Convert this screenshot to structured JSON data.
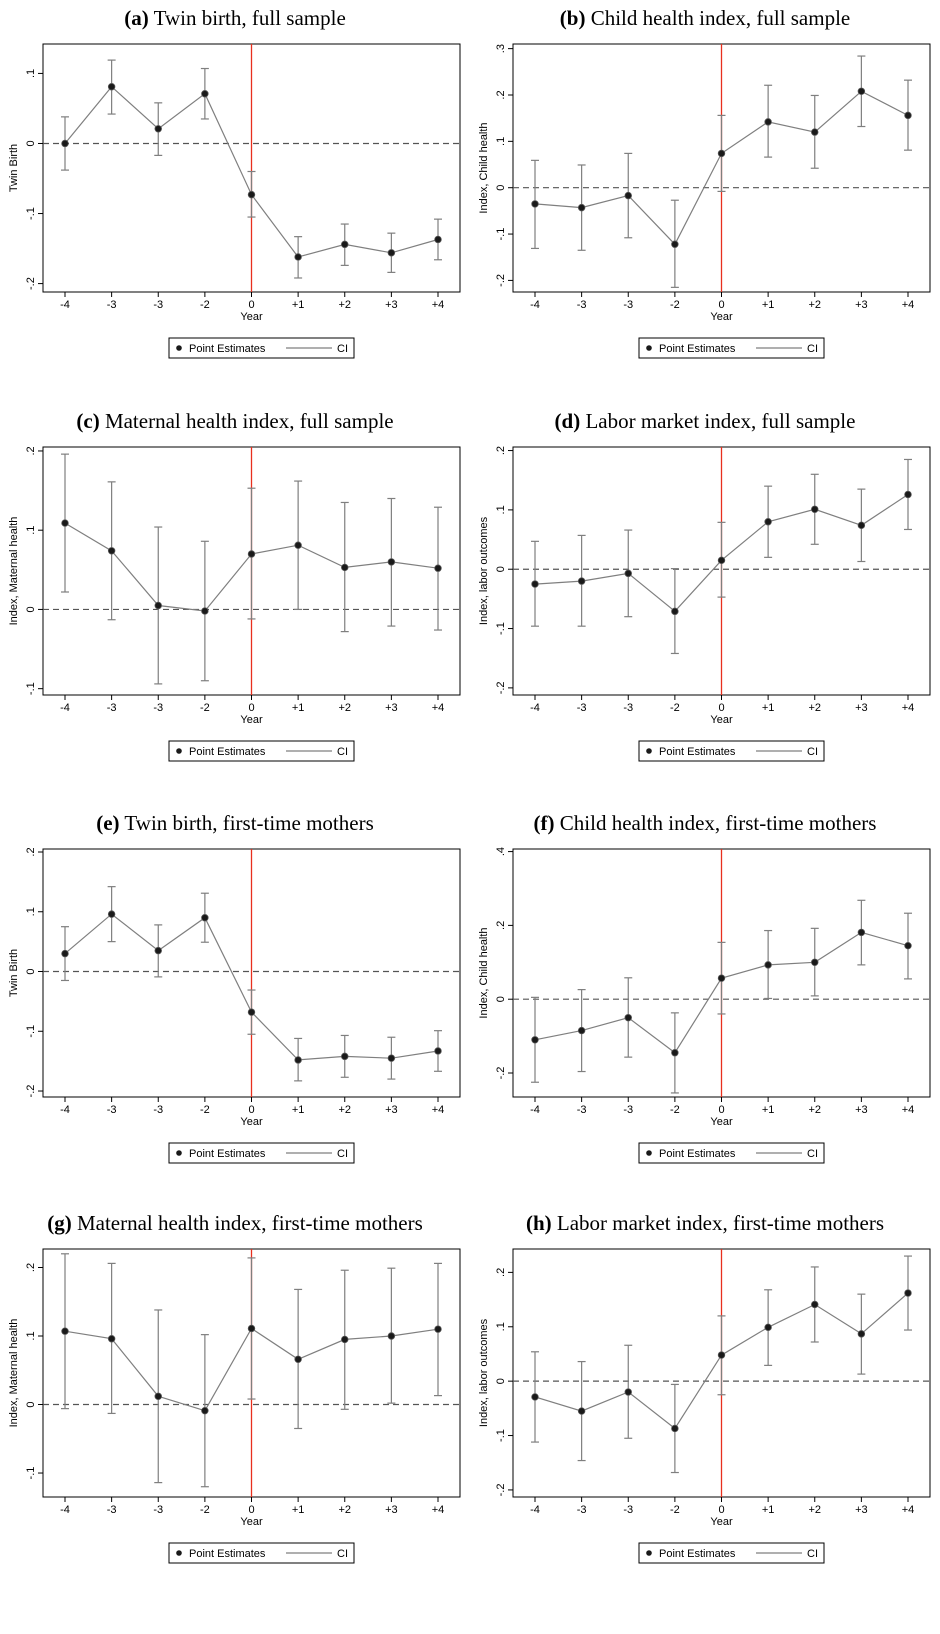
{
  "colors": {
    "series": "#7f7f7f",
    "point": "#1a1a1a",
    "event_line": "#e8301e",
    "zero_line": "#555555",
    "frame": "#000000"
  },
  "legend": {
    "point_label": "Point Estimates",
    "ci_label": "CI"
  },
  "chart_data": [
    {
      "id": "a",
      "type": "line",
      "tag": "(a)",
      "title": "Twin birth, full sample",
      "xlabel": "Year",
      "ylabel": "Twin Birth",
      "categories": [
        "-4",
        "-3",
        "-3",
        "-2",
        "0",
        "+1",
        "+2",
        "+3",
        "+4"
      ],
      "yticks": [
        {
          "value": 0.1,
          "label": ".1"
        },
        {
          "value": 0,
          "label": "0"
        },
        {
          "value": -0.1,
          "label": "-.1"
        },
        {
          "value": -0.2,
          "label": "-.2"
        }
      ],
      "ylim": [
        -0.212,
        0.142
      ],
      "event_index": 4,
      "grid": false,
      "legend_position": "bottom",
      "series": [
        {
          "estimate": [
            0.0,
            0.081,
            0.021,
            0.071,
            -0.073,
            -0.162,
            -0.144,
            -0.156,
            -0.137
          ],
          "ci_lower": [
            -0.038,
            0.042,
            -0.017,
            0.035,
            -0.105,
            -0.192,
            -0.174,
            -0.184,
            -0.166
          ],
          "ci_upper": [
            0.038,
            0.119,
            0.058,
            0.107,
            -0.04,
            -0.133,
            -0.115,
            -0.128,
            -0.108
          ]
        }
      ]
    },
    {
      "id": "b",
      "type": "line",
      "tag": "(b)",
      "title": "Child health index, full sample",
      "xlabel": "Year",
      "ylabel": "Index, Child health",
      "categories": [
        "-4",
        "-3",
        "-3",
        "-2",
        "0",
        "+1",
        "+2",
        "+3",
        "+4"
      ],
      "yticks": [
        {
          "value": 0.3,
          "label": ".3"
        },
        {
          "value": 0.2,
          "label": ".2"
        },
        {
          "value": 0.1,
          "label": ".1"
        },
        {
          "value": 0,
          "label": "0"
        },
        {
          "value": -0.1,
          "label": "-.1"
        },
        {
          "value": -0.2,
          "label": "-.2"
        }
      ],
      "ylim": [
        -0.225,
        0.31
      ],
      "event_index": 4,
      "grid": false,
      "legend_position": "bottom",
      "series": [
        {
          "estimate": [
            -0.035,
            -0.043,
            -0.017,
            -0.122,
            0.074,
            0.142,
            0.12,
            0.208,
            0.156
          ],
          "ci_lower": [
            -0.131,
            -0.135,
            -0.108,
            -0.215,
            -0.008,
            0.066,
            0.042,
            0.132,
            0.081
          ],
          "ci_upper": [
            0.059,
            0.049,
            0.074,
            -0.027,
            0.156,
            0.221,
            0.199,
            0.284,
            0.232
          ]
        }
      ]
    },
    {
      "id": "c",
      "type": "line",
      "tag": "(c)",
      "title": "Maternal health index, full sample",
      "xlabel": "Year",
      "ylabel": "Index, Maternal health",
      "categories": [
        "-4",
        "-3",
        "-3",
        "-2",
        "0",
        "+1",
        "+2",
        "+3",
        "+4"
      ],
      "yticks": [
        {
          "value": 0.2,
          "label": ".2"
        },
        {
          "value": 0.1,
          "label": ".1"
        },
        {
          "value": 0,
          "label": "0"
        },
        {
          "value": -0.1,
          "label": "-.1"
        }
      ],
      "ylim": [
        -0.108,
        0.205
      ],
      "event_index": 4,
      "grid": false,
      "legend_position": "bottom",
      "series": [
        {
          "estimate": [
            0.109,
            0.074,
            0.005,
            -0.002,
            0.07,
            0.081,
            0.053,
            0.06,
            0.052
          ],
          "ci_lower": [
            0.022,
            -0.013,
            -0.094,
            -0.09,
            -0.012,
            0.0,
            -0.028,
            -0.021,
            -0.026
          ],
          "ci_upper": [
            0.196,
            0.161,
            0.104,
            0.086,
            0.153,
            0.162,
            0.135,
            0.14,
            0.129
          ]
        }
      ]
    },
    {
      "id": "d",
      "type": "line",
      "tag": "(d)",
      "title": "Labor market index, full sample",
      "xlabel": "Year",
      "ylabel": "Index, labor outcomes",
      "categories": [
        "-4",
        "-3",
        "-3",
        "-2",
        "0",
        "+1",
        "+2",
        "+3",
        "+4"
      ],
      "yticks": [
        {
          "value": 0.2,
          "label": ".2"
        },
        {
          "value": 0.1,
          "label": ".1"
        },
        {
          "value": 0,
          "label": "0"
        },
        {
          "value": -0.1,
          "label": "-.1"
        },
        {
          "value": -0.2,
          "label": "-.2"
        }
      ],
      "ylim": [
        -0.212,
        0.206
      ],
      "event_index": 4,
      "grid": false,
      "legend_position": "bottom",
      "series": [
        {
          "estimate": [
            -0.025,
            -0.02,
            -0.007,
            -0.071,
            0.015,
            0.08,
            0.101,
            0.074,
            0.126
          ],
          "ci_lower": [
            -0.096,
            -0.096,
            -0.08,
            -0.142,
            -0.047,
            0.02,
            0.042,
            0.013,
            0.067
          ],
          "ci_upper": [
            0.047,
            0.057,
            0.066,
            0.001,
            0.079,
            0.14,
            0.16,
            0.135,
            0.185
          ]
        }
      ]
    },
    {
      "id": "e",
      "type": "line",
      "tag": "(e)",
      "title": "Twin birth, first-time mothers",
      "xlabel": "Year",
      "ylabel": "Twin Birth",
      "categories": [
        "-4",
        "-3",
        "-3",
        "-2",
        "0",
        "+1",
        "+2",
        "+3",
        "+4"
      ],
      "yticks": [
        {
          "value": 0.2,
          "label": ".2"
        },
        {
          "value": 0.1,
          "label": ".1"
        },
        {
          "value": 0,
          "label": "0"
        },
        {
          "value": -0.1,
          "label": "-.1"
        },
        {
          "value": -0.2,
          "label": "-.2"
        }
      ],
      "ylim": [
        -0.21,
        0.205
      ],
      "event_index": 4,
      "grid": false,
      "legend_position": "bottom",
      "series": [
        {
          "estimate": [
            0.03,
            0.096,
            0.035,
            0.09,
            -0.068,
            -0.148,
            -0.142,
            -0.145,
            -0.133
          ],
          "ci_lower": [
            -0.015,
            0.05,
            -0.009,
            0.049,
            -0.105,
            -0.183,
            -0.177,
            -0.18,
            -0.167
          ],
          "ci_upper": [
            0.075,
            0.142,
            0.078,
            0.131,
            -0.031,
            -0.112,
            -0.107,
            -0.11,
            -0.099
          ]
        }
      ]
    },
    {
      "id": "f",
      "type": "line",
      "tag": "(f)",
      "title": "Child health index, first-time mothers",
      "xlabel": "Year",
      "ylabel": "Index, Child health",
      "categories": [
        "-4",
        "-3",
        "-3",
        "-2",
        "0",
        "+1",
        "+2",
        "+3",
        "+4"
      ],
      "yticks": [
        {
          "value": 0.4,
          "label": ".4"
        },
        {
          "value": 0.2,
          "label": ".2"
        },
        {
          "value": 0,
          "label": "0"
        },
        {
          "value": -0.2,
          "label": "-.2"
        }
      ],
      "ylim": [
        -0.265,
        0.407
      ],
      "event_index": 4,
      "grid": false,
      "legend_position": "bottom",
      "series": [
        {
          "estimate": [
            -0.11,
            -0.085,
            -0.05,
            -0.145,
            0.057,
            0.093,
            0.1,
            0.181,
            0.145
          ],
          "ci_lower": [
            -0.225,
            -0.196,
            -0.157,
            -0.254,
            -0.04,
            0.002,
            0.009,
            0.093,
            0.055
          ],
          "ci_upper": [
            0.005,
            0.026,
            0.058,
            -0.037,
            0.154,
            0.186,
            0.192,
            0.268,
            0.233
          ]
        }
      ]
    },
    {
      "id": "g",
      "type": "line",
      "tag": "(g)",
      "title": "Maternal health index, first-time mothers",
      "xlabel": "Year",
      "ylabel": "Index, Maternal health",
      "categories": [
        "-4",
        "-3",
        "-3",
        "-2",
        "0",
        "+1",
        "+2",
        "+3",
        "+4"
      ],
      "yticks": [
        {
          "value": 0.2,
          "label": ".2"
        },
        {
          "value": 0.1,
          "label": ".1"
        },
        {
          "value": 0,
          "label": "0"
        },
        {
          "value": -0.1,
          "label": "-.1"
        }
      ],
      "ylim": [
        -0.135,
        0.227
      ],
      "event_index": 4,
      "grid": false,
      "legend_position": "bottom",
      "series": [
        {
          "estimate": [
            0.107,
            0.096,
            0.012,
            -0.009,
            0.111,
            0.066,
            0.095,
            0.1,
            0.11
          ],
          "ci_lower": [
            -0.006,
            -0.013,
            -0.114,
            -0.12,
            0.008,
            -0.035,
            -0.007,
            0.002,
            0.013
          ],
          "ci_upper": [
            0.22,
            0.206,
            0.138,
            0.102,
            0.214,
            0.168,
            0.196,
            0.199,
            0.206
          ]
        }
      ]
    },
    {
      "id": "h",
      "type": "line",
      "tag": "(h)",
      "title": "Labor market index, first-time mothers",
      "xlabel": "Year",
      "ylabel": "Index, labor outcomes",
      "categories": [
        "-4",
        "-3",
        "-3",
        "-2",
        "0",
        "+1",
        "+2",
        "+3",
        "+4"
      ],
      "yticks": [
        {
          "value": 0.2,
          "label": ".2"
        },
        {
          "value": 0.1,
          "label": ".1"
        },
        {
          "value": 0,
          "label": "0"
        },
        {
          "value": -0.1,
          "label": "-.1"
        },
        {
          "value": -0.2,
          "label": "-.2"
        }
      ],
      "ylim": [
        -0.213,
        0.243
      ],
      "event_index": 4,
      "grid": false,
      "legend_position": "bottom",
      "series": [
        {
          "estimate": [
            -0.029,
            -0.055,
            -0.02,
            -0.087,
            0.048,
            0.099,
            0.141,
            0.087,
            0.162
          ],
          "ci_lower": [
            -0.112,
            -0.146,
            -0.105,
            -0.168,
            -0.025,
            0.029,
            0.072,
            0.013,
            0.094
          ],
          "ci_upper": [
            0.054,
            0.036,
            0.066,
            -0.006,
            0.12,
            0.168,
            0.21,
            0.16,
            0.23
          ]
        }
      ]
    }
  ]
}
